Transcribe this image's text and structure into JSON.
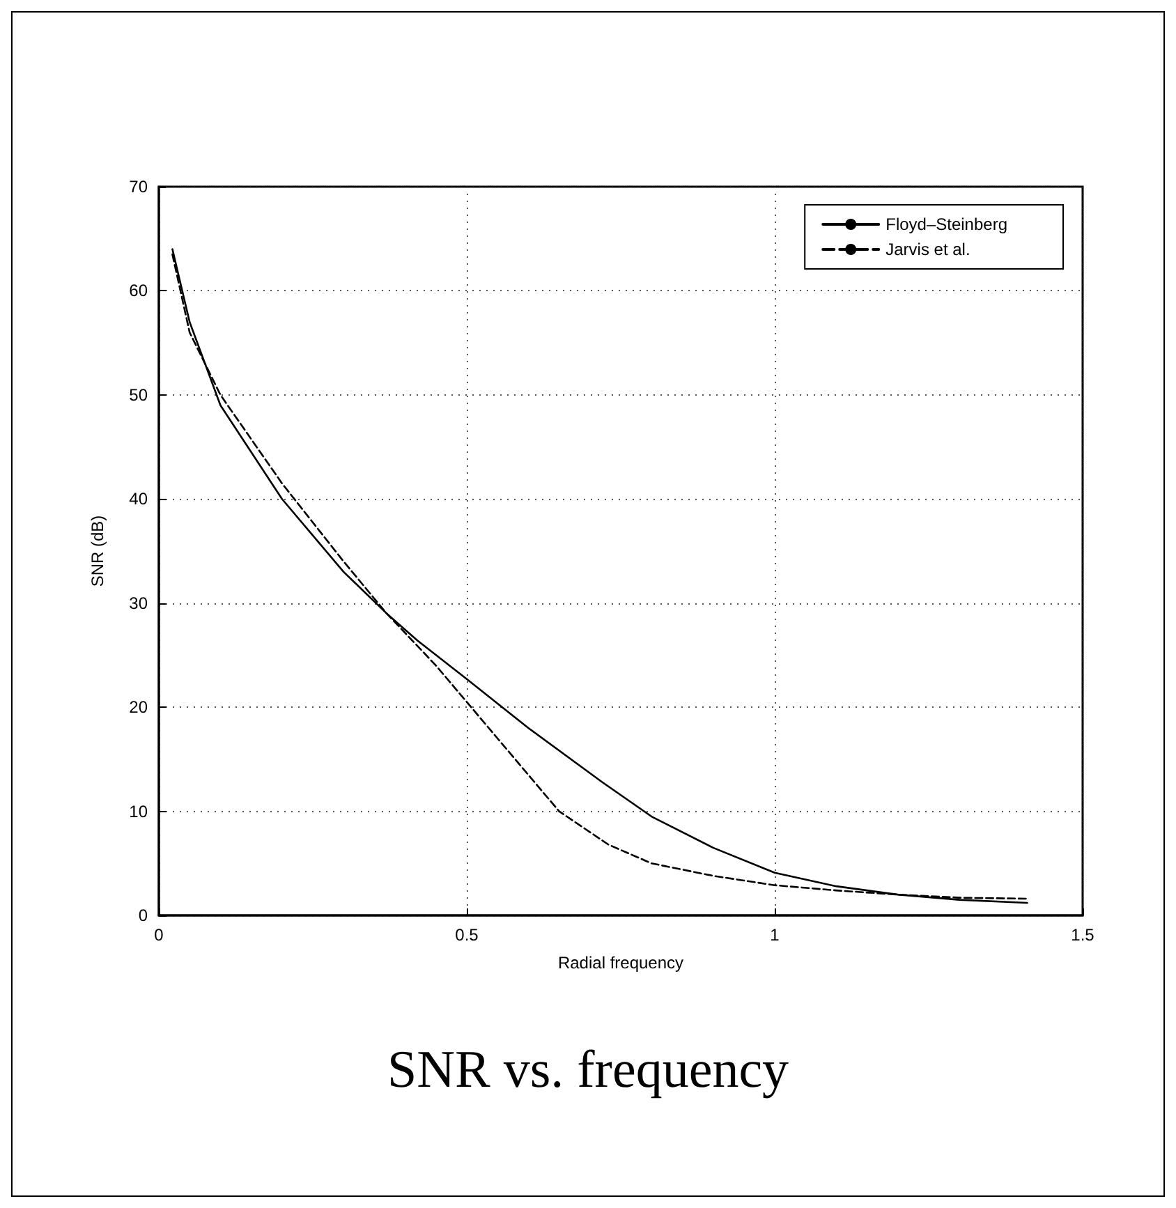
{
  "chart_data": {
    "type": "line",
    "title": "SNR vs. frequency",
    "xlabel": "Radial frequency",
    "ylabel": "SNR (dB)",
    "xlim": [
      0,
      1.5
    ],
    "xticks": [
      0,
      0.5,
      1,
      1.5
    ],
    "ylim": [
      0,
      70
    ],
    "yticks": [
      0,
      10,
      20,
      30,
      40,
      50,
      60,
      70
    ],
    "grid": true,
    "legend": "top right",
    "marker": "none",
    "series": [
      {
        "name": "Floyd–Steinberg",
        "color": "#000000",
        "line_style": "solid",
        "x": [
          0.022,
          0.05,
          0.1,
          0.2,
          0.3,
          0.37,
          0.42,
          0.5,
          0.6,
          0.72,
          0.8,
          0.9,
          1.0,
          1.1,
          1.2,
          1.3,
          1.41
        ],
        "values": [
          64,
          57,
          49,
          40,
          33,
          29,
          26.4,
          22.7,
          18,
          12.8,
          9.5,
          6.5,
          4.1,
          2.8,
          2.0,
          1.5,
          1.2
        ]
      },
      {
        "name": "Jarvis et al.",
        "color": "#000000",
        "line_style": "dashed",
        "x": [
          0.022,
          0.05,
          0.1,
          0.2,
          0.3,
          0.37,
          0.45,
          0.5,
          0.55,
          0.6,
          0.65,
          0.73,
          0.8,
          0.9,
          1.0,
          1.1,
          1.2,
          1.3,
          1.41
        ],
        "values": [
          63.5,
          56,
          50,
          41.5,
          34,
          29,
          24,
          20.5,
          17,
          13.5,
          10,
          6.8,
          5,
          3.8,
          2.9,
          2.4,
          2.0,
          1.7,
          1.6
        ]
      }
    ]
  }
}
